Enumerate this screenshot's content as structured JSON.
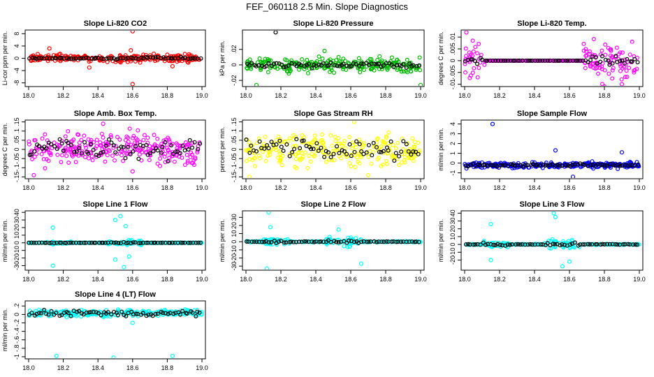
{
  "figure": {
    "title": "FEF_060118  2.5 Min. Slope Diagnostics"
  },
  "colors": {
    "black": "#000000",
    "red": "#ff0000",
    "green": "#00bb00",
    "magenta": "#ff00ff",
    "yellow": "#ffff00",
    "blue": "#0000ff",
    "cyan": "#00ffff"
  },
  "chart_data": [
    {
      "type": "scatter",
      "title": "Slope Li-820 CO2",
      "ylabel": "Li-cor ppm per min.",
      "xlim": [
        17.98,
        19.02
      ],
      "xticks": [
        18.0,
        18.2,
        18.4,
        18.6,
        18.8,
        19.0
      ],
      "ylim": [
        -9.2,
        9.2
      ],
      "yticks": [
        -8,
        -4,
        0,
        4,
        8
      ],
      "point_color": "red",
      "spread": 0.9,
      "black_spread": 0.3,
      "mean": 0,
      "envelope": "uniform",
      "outliers": [
        [
          18.6,
          8.8
        ],
        [
          18.6,
          -8.4
        ],
        [
          18.12,
          3.2
        ],
        [
          18.35,
          -3
        ],
        [
          18.83,
          -2.6
        ],
        [
          18.59,
          2.6
        ]
      ]
    },
    {
      "type": "scatter",
      "title": "Slope Li-820 Pressure",
      "ylabel": "kPa per min.",
      "xlim": [
        17.98,
        19.02
      ],
      "xticks": [
        18.0,
        18.2,
        18.4,
        18.6,
        18.8,
        19.0
      ],
      "ylim": [
        -0.028,
        0.045
      ],
      "yticks": [
        -0.02,
        0.0,
        0.02
      ],
      "point_color": "green",
      "spread": 0.007,
      "black_spread": 0.003,
      "mean": 0,
      "envelope": "uniform",
      "outliers": [
        [
          18.17,
          0.042
        ],
        [
          18.06,
          -0.026
        ],
        [
          19.0,
          -0.026
        ],
        [
          18.45,
          0.018
        ]
      ]
    },
    {
      "type": "scatter",
      "title": "Slope Li-820 Temp.",
      "ylabel": "degrees C per min.",
      "xlim": [
        17.98,
        19.02
      ],
      "xticks": [
        18.0,
        18.2,
        18.4,
        18.6,
        18.8,
        19.0
      ],
      "ylim": [
        -0.011,
        0.013
      ],
      "yticks": [
        -0.01,
        -0.005,
        0.0,
        0.005,
        0.01
      ],
      "point_color": "magenta",
      "spread": 0.006,
      "black_spread": 0.002,
      "mean": 0,
      "envelope": "edges",
      "outliers": [
        [
          18.01,
          0.012
        ],
        [
          18.9,
          -0.01
        ],
        [
          18.8,
          -0.011
        ]
      ]
    },
    {
      "type": "scatter",
      "title": "Slope Amb. Box Temp.",
      "ylabel": "degrees C per min.",
      "xlim": [
        17.98,
        19.02
      ],
      "xticks": [
        18.0,
        18.2,
        18.4,
        18.6,
        18.8,
        19.0
      ],
      "ylim": [
        -0.16,
        0.16
      ],
      "yticks": [
        -0.15,
        -0.1,
        -0.05,
        0.0,
        0.05,
        0.1,
        0.15
      ],
      "point_color": "magenta",
      "spread": 0.07,
      "black_spread": 0.04,
      "mean": 0,
      "envelope": "uniform",
      "outliers": [
        [
          18.43,
          0.14
        ],
        [
          18.03,
          -0.14
        ],
        [
          18.6,
          -0.12
        ]
      ]
    },
    {
      "type": "scatter",
      "title": "Slope Gas Stream RH",
      "ylabel": "percent per min.",
      "xlim": [
        17.98,
        19.02
      ],
      "xticks": [
        18.0,
        18.2,
        18.4,
        18.6,
        18.8,
        19.0
      ],
      "ylim": [
        -0.16,
        0.16
      ],
      "yticks": [
        -0.15,
        -0.1,
        -0.05,
        0.0,
        0.05,
        0.1,
        0.15
      ],
      "point_color": "yellow",
      "spread": 0.07,
      "black_spread": 0.05,
      "mean": 0,
      "envelope": "uniform",
      "outliers": [
        [
          18.62,
          0.15
        ],
        [
          18.02,
          -0.15
        ],
        [
          18.7,
          -0.14
        ]
      ]
    },
    {
      "type": "scatter",
      "title": "Slope Sample Flow",
      "ylabel": "ml/min per min.",
      "xlim": [
        17.98,
        19.02
      ],
      "xticks": [
        18.0,
        18.2,
        18.4,
        18.6,
        18.8,
        19.0
      ],
      "ylim": [
        -1.6,
        4.4
      ],
      "yticks": [
        -1,
        0,
        1,
        2,
        3,
        4
      ],
      "point_color": "blue",
      "spread": 0.25,
      "black_spread": 0.1,
      "mean": -0.2,
      "envelope": "uniform",
      "outliers": [
        [
          18.16,
          4.0
        ],
        [
          18.62,
          -1.4
        ],
        [
          18.52,
          1.3
        ],
        [
          18.9,
          1.1
        ]
      ]
    },
    {
      "type": "scatter",
      "title": "Slope Line 1 Flow",
      "ylabel": "ml/min per min.",
      "xlim": [
        17.98,
        19.02
      ],
      "xticks": [
        18.0,
        18.2,
        18.4,
        18.6,
        18.8,
        19.0
      ],
      "ylim": [
        -36,
        42
      ],
      "yticks": [
        -30,
        -20,
        -10,
        0,
        10,
        20,
        30,
        40
      ],
      "point_color": "cyan",
      "spread": 1.2,
      "black_spread": 0.4,
      "mean": 0,
      "envelope": "middle",
      "outliers": [
        [
          18.14,
          20
        ],
        [
          18.14,
          -30
        ],
        [
          18.5,
          30
        ],
        [
          18.53,
          35
        ],
        [
          18.55,
          -32
        ],
        [
          18.5,
          -22
        ],
        [
          18.56,
          22
        ],
        [
          18.58,
          -18
        ]
      ]
    },
    {
      "type": "scatter",
      "title": "Slope Line 2 Flow",
      "ylabel": "ml/min per min.",
      "xlim": [
        17.98,
        19.02
      ],
      "xticks": [
        18.0,
        18.2,
        18.4,
        18.6,
        18.8,
        19.0
      ],
      "ylim": [
        -35,
        38
      ],
      "yticks": [
        -30,
        -20,
        -10,
        0,
        10,
        20,
        30
      ],
      "point_color": "cyan",
      "spread": 2.5,
      "black_spread": 1.5,
      "mean": 0,
      "envelope": "middle",
      "outliers": [
        [
          18.13,
          36
        ],
        [
          18.12,
          -33
        ],
        [
          18.66,
          -27
        ],
        [
          18.14,
          18
        ],
        [
          18.53,
          15
        ]
      ]
    },
    {
      "type": "scatter",
      "title": "Slope Line 3 Flow",
      "ylabel": "ml/min per min.",
      "xlim": [
        17.98,
        19.02
      ],
      "xticks": [
        18.0,
        18.2,
        18.4,
        18.6,
        18.8,
        19.0
      ],
      "ylim": [
        -33,
        43
      ],
      "yticks": [
        -20,
        -10,
        0,
        10,
        20,
        30,
        40
      ],
      "point_color": "cyan",
      "spread": 2.0,
      "black_spread": 1.5,
      "mean": 0,
      "envelope": "middle",
      "outliers": [
        [
          18.51,
          40
        ],
        [
          18.15,
          26
        ],
        [
          18.15,
          -20
        ],
        [
          18.52,
          35
        ],
        [
          18.56,
          -28
        ],
        [
          18.6,
          -22
        ]
      ]
    },
    {
      "type": "scatter",
      "title": "Slope Line 4 (LT) Flow",
      "ylabel": "ml/min per min.",
      "xlim": [
        17.98,
        19.02
      ],
      "xticks": [
        18.0,
        18.2,
        18.4,
        18.6,
        18.8,
        19.0
      ],
      "ylim": [
        -1.05,
        0.32
      ],
      "yticks": [
        -1.0,
        -0.8,
        -0.6,
        -0.4,
        -0.2,
        0.0,
        0.2
      ],
      "point_color": "cyan",
      "spread": 0.06,
      "black_spread": 0.05,
      "mean": 0.03,
      "envelope": "uniform",
      "outliers": [
        [
          18.16,
          -0.98
        ],
        [
          18.49,
          -1.02
        ],
        [
          18.83,
          -0.98
        ],
        [
          18.6,
          -0.2
        ]
      ]
    }
  ]
}
